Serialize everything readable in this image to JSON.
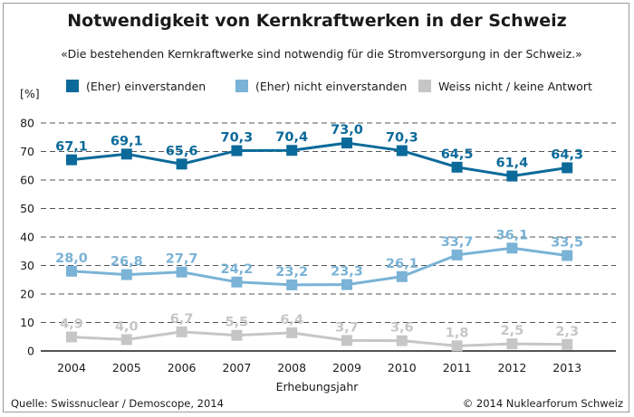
{
  "chart_data": {
    "type": "line",
    "title": "Notwendigkeit von Kernkraftwerken in der Schweiz",
    "subtitle": "«Die bestehenden Kernkraftwerke sind notwendig für die Stromversorgung in der Schweiz.»",
    "xlabel": "Erhebungsjahr",
    "ylabel": "[%]",
    "x": [
      "2004",
      "2005",
      "2006",
      "2007",
      "2008",
      "2009",
      "2010",
      "2011",
      "2012",
      "2013"
    ],
    "ylim": [
      0,
      80
    ],
    "yticks": [
      0,
      10,
      20,
      30,
      40,
      50,
      60,
      70,
      80
    ],
    "grid": "horizontal dashed",
    "legend_position": "top",
    "series": [
      {
        "name": "(Eher) einverstanden",
        "color": "#0b6a9a",
        "values": [
          67.1,
          69.1,
          65.6,
          70.3,
          70.4,
          73.0,
          70.3,
          64.5,
          61.4,
          64.3
        ],
        "labels": [
          "67,1",
          "69,1",
          "65,6",
          "70,3",
          "70,4",
          "73,0",
          "70,3",
          "64,5",
          "61,4",
          "64,3"
        ]
      },
      {
        "name": "(Eher) nicht einverstanden",
        "color": "#7ab3d6",
        "values": [
          28.0,
          26.8,
          27.7,
          24.2,
          23.2,
          23.3,
          26.1,
          33.7,
          36.1,
          33.5
        ],
        "labels": [
          "28,0",
          "26,8",
          "27,7",
          "24,2",
          "23,2",
          "23,3",
          "26,1",
          "33,7",
          "36,1",
          "33,5"
        ]
      },
      {
        "name": "Weiss nicht / keine Antwort",
        "color": "#c6c6c6",
        "values": [
          4.9,
          4.0,
          6.7,
          5.5,
          6.4,
          3.7,
          3.6,
          1.8,
          2.5,
          2.3
        ],
        "labels": [
          "4,9",
          "4,0",
          "6,7",
          "5,5",
          "6,4",
          "3,7",
          "3,6",
          "1,8",
          "2,5",
          "2,3"
        ]
      }
    ],
    "source": "Quelle: Swissnuclear / Demoscope, 2014",
    "copyright": "© 2014 Nuklearforum Schweiz"
  }
}
